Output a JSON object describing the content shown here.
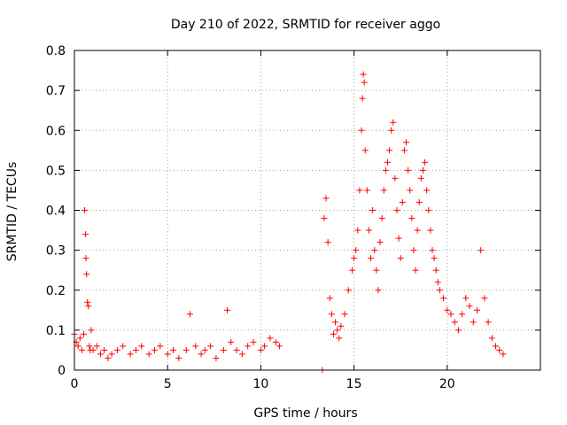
{
  "chart_data": {
    "type": "scatter",
    "title": "Day 210 of 2022, SRMTID for receiver aggo",
    "xlabel": "GPS time / hours",
    "ylabel": "SRMTID / TECUs",
    "xlim": [
      0,
      25
    ],
    "ylim": [
      0,
      0.8
    ],
    "xticks": [
      0,
      5,
      10,
      15,
      20
    ],
    "yticks": [
      0,
      0.1,
      0.2,
      0.3,
      0.4,
      0.5,
      0.6,
      0.7,
      0.8
    ],
    "xtick_labels": [
      "0",
      "5",
      "10",
      "15",
      "20"
    ],
    "ytick_labels": [
      "0",
      "0.1",
      "0.2",
      "0.3",
      "0.4",
      "0.5",
      "0.6",
      "0.7",
      "0.8"
    ],
    "grid": true,
    "marker": "+",
    "marker_color": "#ff0000",
    "series": [
      {
        "name": "SRMTID",
        "x": [
          0.0,
          0.1,
          0.2,
          0.3,
          0.4,
          0.5,
          0.55,
          0.6,
          0.62,
          0.65,
          0.7,
          0.75,
          0.8,
          0.85,
          0.9,
          1.0,
          1.2,
          1.4,
          1.6,
          1.8,
          2.0,
          2.3,
          2.6,
          3.0,
          3.3,
          3.6,
          4.0,
          4.3,
          4.6,
          5.0,
          5.3,
          5.6,
          6.0,
          6.2,
          6.5,
          6.8,
          7.0,
          7.3,
          7.6,
          8.0,
          8.2,
          8.4,
          8.7,
          9.0,
          9.3,
          9.6,
          10.0,
          10.2,
          10.5,
          10.8,
          11.0,
          13.3,
          13.4,
          13.5,
          13.6,
          13.7,
          13.8,
          13.9,
          14.0,
          14.1,
          14.2,
          14.3,
          14.5,
          14.7,
          14.9,
          15.0,
          15.1,
          15.2,
          15.3,
          15.4,
          15.45,
          15.5,
          15.55,
          15.6,
          15.7,
          15.8,
          15.9,
          16.0,
          16.1,
          16.2,
          16.3,
          16.4,
          16.5,
          16.6,
          16.7,
          16.8,
          16.9,
          17.0,
          17.1,
          17.2,
          17.3,
          17.4,
          17.5,
          17.6,
          17.7,
          17.8,
          17.9,
          18.0,
          18.1,
          18.2,
          18.3,
          18.4,
          18.5,
          18.6,
          18.7,
          18.8,
          18.9,
          19.0,
          19.1,
          19.2,
          19.3,
          19.4,
          19.5,
          19.6,
          19.8,
          20.0,
          20.2,
          20.4,
          20.6,
          20.8,
          21.0,
          21.2,
          21.4,
          21.6,
          21.8,
          22.0,
          22.2,
          22.4,
          22.6,
          22.8,
          23.0
        ],
        "y": [
          0.09,
          0.07,
          0.06,
          0.08,
          0.05,
          0.09,
          0.4,
          0.34,
          0.28,
          0.24,
          0.17,
          0.16,
          0.06,
          0.05,
          0.1,
          0.05,
          0.06,
          0.04,
          0.05,
          0.03,
          0.04,
          0.05,
          0.06,
          0.04,
          0.05,
          0.06,
          0.04,
          0.05,
          0.06,
          0.04,
          0.05,
          0.03,
          0.05,
          0.14,
          0.06,
          0.04,
          0.05,
          0.06,
          0.03,
          0.05,
          0.15,
          0.07,
          0.05,
          0.04,
          0.06,
          0.07,
          0.05,
          0.06,
          0.08,
          0.07,
          0.06,
          0.0,
          0.38,
          0.43,
          0.32,
          0.18,
          0.14,
          0.09,
          0.12,
          0.1,
          0.08,
          0.11,
          0.14,
          0.2,
          0.25,
          0.28,
          0.3,
          0.35,
          0.45,
          0.6,
          0.68,
          0.74,
          0.72,
          0.55,
          0.45,
          0.35,
          0.28,
          0.4,
          0.3,
          0.25,
          0.2,
          0.32,
          0.38,
          0.45,
          0.5,
          0.52,
          0.55,
          0.6,
          0.62,
          0.48,
          0.4,
          0.33,
          0.28,
          0.42,
          0.55,
          0.57,
          0.5,
          0.45,
          0.38,
          0.3,
          0.25,
          0.35,
          0.42,
          0.48,
          0.5,
          0.52,
          0.45,
          0.4,
          0.35,
          0.3,
          0.28,
          0.25,
          0.22,
          0.2,
          0.18,
          0.15,
          0.14,
          0.12,
          0.1,
          0.14,
          0.18,
          0.16,
          0.12,
          0.15,
          0.3,
          0.18,
          0.12,
          0.08,
          0.06,
          0.05,
          0.04
        ]
      }
    ]
  }
}
